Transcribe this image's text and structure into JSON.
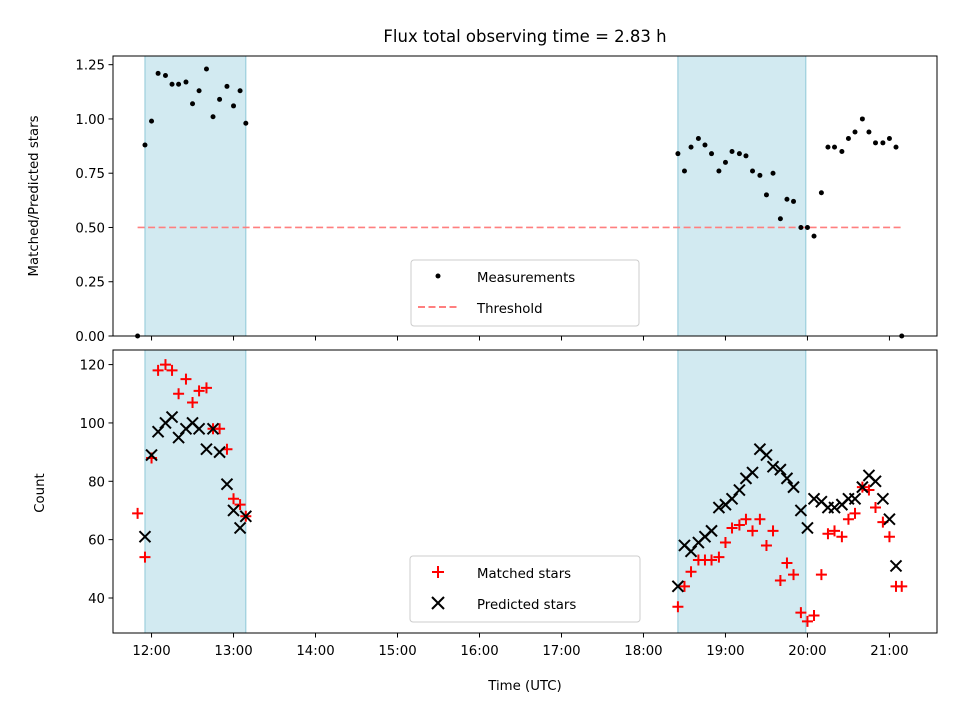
{
  "chart_data": [
    {
      "type": "scatter",
      "title": "Flux total observing time = 2.83 h",
      "xlabel": "",
      "ylabel": "Matched/Predicted stars",
      "xlim": [
        11.53,
        21.58
      ],
      "ylim": [
        0,
        1.29
      ],
      "yticks": [
        "0.00",
        "0.25",
        "0.50",
        "0.75",
        "1.00",
        "1.25"
      ],
      "shaded_intervals": [
        [
          11.92,
          13.15
        ],
        [
          18.42,
          19.98
        ]
      ],
      "legend_position": "bottom-center",
      "series": [
        {
          "name": "Measurements",
          "marker": "dot",
          "color": "#000000",
          "x": [
            11.83,
            11.92,
            12.0,
            12.08,
            12.17,
            12.25,
            12.33,
            12.42,
            12.5,
            12.58,
            12.67,
            12.75,
            12.83,
            12.92,
            13.0,
            13.08,
            13.15,
            18.42,
            18.5,
            18.58,
            18.67,
            18.75,
            18.83,
            18.92,
            19.0,
            19.08,
            19.17,
            19.25,
            19.33,
            19.42,
            19.5,
            19.58,
            19.67,
            19.75,
            19.83,
            19.92,
            20.0,
            20.08,
            20.17,
            20.25,
            20.33,
            20.42,
            20.5,
            20.58,
            20.67,
            20.75,
            20.83,
            20.92,
            21.0,
            21.08,
            21.15
          ],
          "y": [
            0.0,
            0.88,
            0.99,
            1.21,
            1.2,
            1.16,
            1.16,
            1.17,
            1.07,
            1.13,
            1.23,
            1.01,
            1.09,
            1.15,
            1.06,
            1.13,
            0.98,
            0.84,
            0.76,
            0.87,
            0.91,
            0.88,
            0.84,
            0.76,
            0.8,
            0.85,
            0.84,
            0.83,
            0.76,
            0.74,
            0.65,
            0.75,
            0.54,
            0.63,
            0.62,
            0.5,
            0.5,
            0.46,
            0.66,
            0.87,
            0.87,
            0.85,
            0.91,
            0.94,
            1.0,
            0.94,
            0.89,
            0.89,
            0.91,
            0.87,
            0.0
          ]
        },
        {
          "name": "Threshold",
          "marker": "dashed-line",
          "color": "#ff7f7f",
          "x": [
            11.83,
            21.15
          ],
          "y": [
            0.5,
            0.5
          ]
        }
      ]
    },
    {
      "type": "scatter",
      "title": "",
      "xlabel": "Time (UTC)",
      "ylabel": "Count",
      "xlim": [
        11.53,
        21.58
      ],
      "ylim": [
        28,
        125
      ],
      "xticks": [
        "12:00",
        "13:00",
        "14:00",
        "15:00",
        "16:00",
        "17:00",
        "18:00",
        "19:00",
        "20:00",
        "21:00"
      ],
      "yticks": [
        "40",
        "60",
        "80",
        "100",
        "120"
      ],
      "shaded_intervals": [
        [
          11.92,
          13.15
        ],
        [
          18.42,
          19.98
        ]
      ],
      "legend_position": "bottom-center",
      "series": [
        {
          "name": "Matched stars",
          "marker": "plus",
          "color": "#ff0000",
          "x": [
            11.83,
            11.92,
            12.0,
            12.08,
            12.17,
            12.25,
            12.33,
            12.42,
            12.5,
            12.58,
            12.67,
            12.75,
            12.83,
            12.92,
            13.0,
            13.08,
            13.15,
            18.42,
            18.5,
            18.58,
            18.67,
            18.75,
            18.83,
            18.92,
            19.0,
            19.08,
            19.17,
            19.25,
            19.33,
            19.42,
            19.5,
            19.58,
            19.67,
            19.75,
            19.83,
            19.92,
            20.0,
            20.08,
            20.17,
            20.25,
            20.33,
            20.42,
            20.5,
            20.58,
            20.67,
            20.75,
            20.83,
            20.92,
            21.0,
            21.08,
            21.15
          ],
          "y": [
            69,
            54,
            88,
            118,
            120,
            118,
            110,
            115,
            107,
            111,
            112,
            98,
            98,
            91,
            74,
            72,
            68,
            37,
            44,
            49,
            53,
            53,
            53,
            54,
            59,
            64,
            65,
            67,
            63,
            67,
            58,
            63,
            46,
            52,
            48,
            35,
            32,
            34,
            48,
            62,
            63,
            61,
            67,
            69,
            78,
            77,
            71,
            66,
            61,
            44,
            44
          ]
        },
        {
          "name": "Predicted stars",
          "marker": "x",
          "color": "#000000",
          "x": [
            11.92,
            12.0,
            12.08,
            12.17,
            12.25,
            12.33,
            12.42,
            12.5,
            12.58,
            12.67,
            12.75,
            12.83,
            12.92,
            13.0,
            13.08,
            13.15,
            18.42,
            18.5,
            18.58,
            18.67,
            18.75,
            18.83,
            18.92,
            19.0,
            19.08,
            19.17,
            19.25,
            19.33,
            19.42,
            19.5,
            19.58,
            19.67,
            19.75,
            19.83,
            19.92,
            20.0,
            20.08,
            20.17,
            20.25,
            20.33,
            20.42,
            20.5,
            20.58,
            20.67,
            20.75,
            20.83,
            20.92,
            21.0,
            21.08
          ],
          "y": [
            61,
            89,
            97,
            100,
            102,
            95,
            98,
            100,
            98,
            91,
            98,
            90,
            79,
            70,
            64,
            68,
            44,
            58,
            56,
            59,
            61,
            63,
            71,
            72,
            74,
            77,
            81,
            83,
            91,
            89,
            85,
            84,
            81,
            78,
            70,
            64,
            74,
            73,
            71,
            71,
            72,
            74,
            74,
            78,
            82,
            80,
            74,
            67,
            51
          ]
        }
      ]
    }
  ],
  "colors": {
    "shade_fill": "#add8e6",
    "shade_edge": "#8fc8d8",
    "axis": "#000000",
    "legend_border": "#cccccc"
  }
}
